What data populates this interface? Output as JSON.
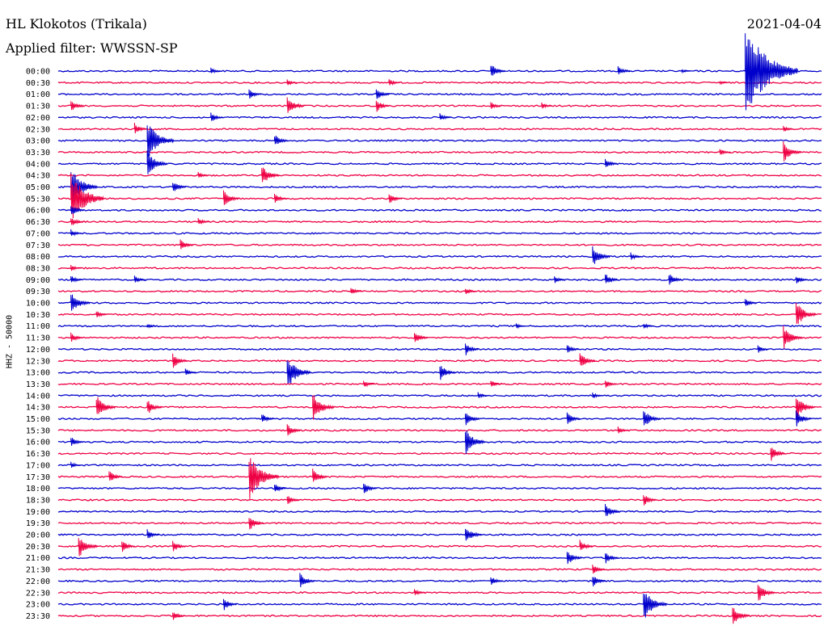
{
  "header": {
    "station": "HL Klokotos (Trikala)",
    "date": "2021-04-04",
    "filter": "Applied filter: WWSSN-SP"
  },
  "chart_data": {
    "type": "line",
    "title": "HL Klokotos (Trikala)",
    "ylabel": "HHZ - 50000",
    "xlabel": "",
    "y_tick_labels": [
      "00:00",
      "00:30",
      "01:00",
      "01:30",
      "02:00",
      "02:30",
      "03:00",
      "03:30",
      "04:00",
      "04:30",
      "05:00",
      "05:30",
      "06:00",
      "06:30",
      "07:00",
      "07:30",
      "08:00",
      "08:30",
      "09:00",
      "09:30",
      "10:00",
      "10:30",
      "11:00",
      "11:30",
      "12:00",
      "12:30",
      "13:00",
      "13:30",
      "14:00",
      "14:30",
      "15:00",
      "15:30",
      "16:00",
      "16:30",
      "17:00",
      "17:30",
      "18:00",
      "18:30",
      "19:00",
      "19:30",
      "20:00",
      "20:30",
      "21:00",
      "21:30",
      "22:00",
      "22:30",
      "23:00",
      "23:30"
    ],
    "trace_colors": [
      "#0000cc",
      "#ee0044"
    ],
    "minutes_per_row": 30,
    "events": [
      {
        "row": 0,
        "minute": 17.0,
        "amp": 1.2
      },
      {
        "row": 0,
        "minute": 22.0,
        "amp": 0.8
      },
      {
        "row": 0,
        "minute": 27.0,
        "amp": 7.0
      },
      {
        "row": 0,
        "minute": 6.0,
        "amp": 0.5
      },
      {
        "row": 0,
        "minute": 24.5,
        "amp": 0.3
      },
      {
        "row": 1,
        "minute": 9.0,
        "amp": 0.5
      },
      {
        "row": 1,
        "minute": 13.0,
        "amp": 0.6
      },
      {
        "row": 1,
        "minute": 26.0,
        "amp": 0.3
      },
      {
        "row": 2,
        "minute": 7.5,
        "amp": 0.8
      },
      {
        "row": 2,
        "minute": 12.5,
        "amp": 1.0
      },
      {
        "row": 3,
        "minute": 0.5,
        "amp": 1.0
      },
      {
        "row": 3,
        "minute": 9.0,
        "amp": 1.5
      },
      {
        "row": 3,
        "minute": 12.5,
        "amp": 1.0
      },
      {
        "row": 3,
        "minute": 17.0,
        "amp": 0.6
      },
      {
        "row": 3,
        "minute": 19.0,
        "amp": 0.5
      },
      {
        "row": 4,
        "minute": 6.0,
        "amp": 0.8
      },
      {
        "row": 4,
        "minute": 15.0,
        "amp": 0.6
      },
      {
        "row": 5,
        "minute": 3.0,
        "amp": 0.9
      },
      {
        "row": 5,
        "minute": 28.5,
        "amp": 0.5
      },
      {
        "row": 6,
        "minute": 3.5,
        "amp": 3.0
      },
      {
        "row": 6,
        "minute": 8.5,
        "amp": 1.0
      },
      {
        "row": 7,
        "minute": 26.0,
        "amp": 0.6
      },
      {
        "row": 7,
        "minute": 28.5,
        "amp": 1.6
      },
      {
        "row": 8,
        "minute": 3.5,
        "amp": 2.0
      },
      {
        "row": 8,
        "minute": 21.5,
        "amp": 0.8
      },
      {
        "row": 9,
        "minute": 5.5,
        "amp": 0.5
      },
      {
        "row": 9,
        "minute": 8.0,
        "amp": 1.6
      },
      {
        "row": 10,
        "minute": 0.5,
        "amp": 3.0
      },
      {
        "row": 10,
        "minute": 4.5,
        "amp": 1.0
      },
      {
        "row": 11,
        "minute": 0.5,
        "amp": 4.0
      },
      {
        "row": 11,
        "minute": 6.5,
        "amp": 1.3
      },
      {
        "row": 11,
        "minute": 8.5,
        "amp": 0.8
      },
      {
        "row": 11,
        "minute": 13.0,
        "amp": 0.9
      },
      {
        "row": 12,
        "minute": 0.5,
        "amp": 1.0
      },
      {
        "row": 13,
        "minute": 0.5,
        "amp": 0.8
      },
      {
        "row": 13,
        "minute": 5.5,
        "amp": 0.6
      },
      {
        "row": 14,
        "minute": 0.5,
        "amp": 0.6
      },
      {
        "row": 15,
        "minute": 4.8,
        "amp": 1.0
      },
      {
        "row": 16,
        "minute": 21.0,
        "amp": 1.6
      },
      {
        "row": 16,
        "minute": 22.5,
        "amp": 0.6
      },
      {
        "row": 17,
        "minute": 0.5,
        "amp": 0.5
      },
      {
        "row": 18,
        "minute": 0.5,
        "amp": 0.7
      },
      {
        "row": 18,
        "minute": 3.0,
        "amp": 0.6
      },
      {
        "row": 18,
        "minute": 19.5,
        "amp": 0.6
      },
      {
        "row": 18,
        "minute": 21.5,
        "amp": 1.0
      },
      {
        "row": 18,
        "minute": 24.0,
        "amp": 1.0
      },
      {
        "row": 18,
        "minute": 29.0,
        "amp": 0.7
      },
      {
        "row": 19,
        "minute": 11.5,
        "amp": 0.6
      },
      {
        "row": 19,
        "minute": 16.0,
        "amp": 0.6
      },
      {
        "row": 20,
        "minute": 0.5,
        "amp": 1.8
      },
      {
        "row": 20,
        "minute": 27.0,
        "amp": 0.7
      },
      {
        "row": 21,
        "minute": 1.5,
        "amp": 0.6
      },
      {
        "row": 21,
        "minute": 29.0,
        "amp": 2.0
      },
      {
        "row": 22,
        "minute": 3.5,
        "amp": 0.4
      },
      {
        "row": 22,
        "minute": 18.0,
        "amp": 0.4
      },
      {
        "row": 22,
        "minute": 23.0,
        "amp": 0.5
      },
      {
        "row": 23,
        "minute": 0.5,
        "amp": 0.8
      },
      {
        "row": 23,
        "minute": 14.0,
        "amp": 1.0
      },
      {
        "row": 23,
        "minute": 28.5,
        "amp": 1.8
      },
      {
        "row": 24,
        "minute": 16.0,
        "amp": 1.0
      },
      {
        "row": 24,
        "minute": 20.0,
        "amp": 0.8
      },
      {
        "row": 24,
        "minute": 27.5,
        "amp": 0.6
      },
      {
        "row": 25,
        "minute": 4.5,
        "amp": 1.2
      },
      {
        "row": 25,
        "minute": 20.5,
        "amp": 1.3
      },
      {
        "row": 26,
        "minute": 5.0,
        "amp": 0.6
      },
      {
        "row": 26,
        "minute": 9.0,
        "amp": 2.5
      },
      {
        "row": 26,
        "minute": 15.0,
        "amp": 1.3
      },
      {
        "row": 27,
        "minute": 12.0,
        "amp": 0.6
      },
      {
        "row": 27,
        "minute": 17.0,
        "amp": 0.6
      },
      {
        "row": 27,
        "minute": 21.5,
        "amp": 0.7
      },
      {
        "row": 28,
        "minute": 16.5,
        "amp": 0.5
      },
      {
        "row": 28,
        "minute": 21.0,
        "amp": 0.5
      },
      {
        "row": 29,
        "minute": 1.5,
        "amp": 1.8
      },
      {
        "row": 29,
        "minute": 3.5,
        "amp": 1.2
      },
      {
        "row": 29,
        "minute": 10.0,
        "amp": 2.2
      },
      {
        "row": 29,
        "minute": 29.0,
        "amp": 1.8
      },
      {
        "row": 30,
        "minute": 8.0,
        "amp": 0.8
      },
      {
        "row": 30,
        "minute": 16.0,
        "amp": 1.2
      },
      {
        "row": 30,
        "minute": 20.0,
        "amp": 1.0
      },
      {
        "row": 30,
        "minute": 23.0,
        "amp": 1.5
      },
      {
        "row": 30,
        "minute": 29.0,
        "amp": 1.3
      },
      {
        "row": 31,
        "minute": 9.0,
        "amp": 1.0
      },
      {
        "row": 31,
        "minute": 22.0,
        "amp": 0.6
      },
      {
        "row": 32,
        "minute": 0.5,
        "amp": 0.8
      },
      {
        "row": 32,
        "minute": 16.0,
        "amp": 2.0
      },
      {
        "row": 33,
        "minute": 28.0,
        "amp": 1.2
      },
      {
        "row": 34,
        "minute": 0.5,
        "amp": 0.5
      },
      {
        "row": 35,
        "minute": 2.0,
        "amp": 1.0
      },
      {
        "row": 35,
        "minute": 7.5,
        "amp": 3.5
      },
      {
        "row": 35,
        "minute": 10.0,
        "amp": 1.2
      },
      {
        "row": 36,
        "minute": 8.5,
        "amp": 0.8
      },
      {
        "row": 36,
        "minute": 12.0,
        "amp": 1.0
      },
      {
        "row": 37,
        "minute": 9.0,
        "amp": 0.8
      },
      {
        "row": 37,
        "minute": 23.0,
        "amp": 1.0
      },
      {
        "row": 38,
        "minute": 21.5,
        "amp": 1.2
      },
      {
        "row": 39,
        "minute": 7.5,
        "amp": 1.2
      },
      {
        "row": 40,
        "minute": 3.5,
        "amp": 0.8
      },
      {
        "row": 40,
        "minute": 16.0,
        "amp": 1.4
      },
      {
        "row": 41,
        "minute": 0.8,
        "amp": 1.8
      },
      {
        "row": 41,
        "minute": 2.5,
        "amp": 1.0
      },
      {
        "row": 41,
        "minute": 4.5,
        "amp": 1.0
      },
      {
        "row": 41,
        "minute": 20.5,
        "amp": 1.0
      },
      {
        "row": 42,
        "minute": 20.0,
        "amp": 1.2
      },
      {
        "row": 42,
        "minute": 21.5,
        "amp": 1.0
      },
      {
        "row": 43,
        "minute": 21.0,
        "amp": 0.8
      },
      {
        "row": 44,
        "minute": 9.5,
        "amp": 1.2
      },
      {
        "row": 44,
        "minute": 17.0,
        "amp": 0.8
      },
      {
        "row": 44,
        "minute": 21.0,
        "amp": 1.0
      },
      {
        "row": 45,
        "minute": 14.0,
        "amp": 0.6
      },
      {
        "row": 45,
        "minute": 27.5,
        "amp": 1.5
      },
      {
        "row": 46,
        "minute": 6.5,
        "amp": 1.0
      },
      {
        "row": 46,
        "minute": 23.0,
        "amp": 2.5
      },
      {
        "row": 47,
        "minute": 4.5,
        "amp": 0.8
      },
      {
        "row": 47,
        "minute": 26.5,
        "amp": 1.5
      }
    ]
  }
}
